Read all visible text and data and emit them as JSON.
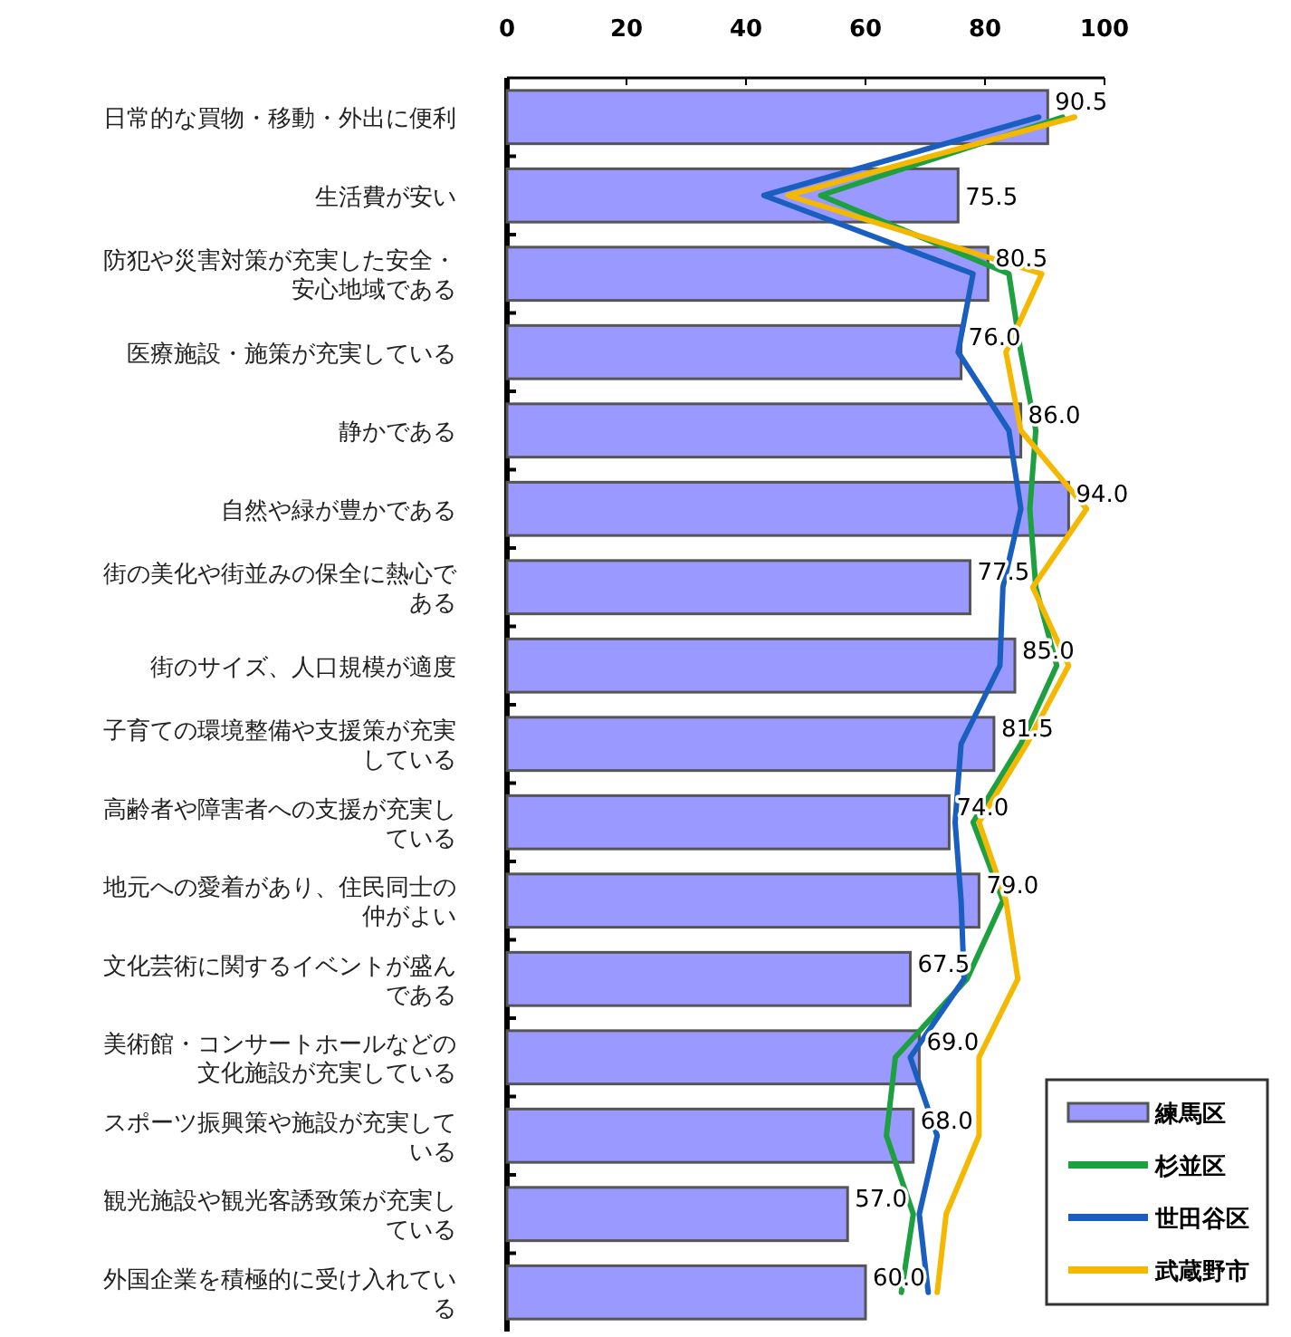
{
  "chart_data": {
    "type": "bar",
    "orientation": "horizontal",
    "categories": [
      "日常的な買物・移動・外出に便利",
      "生活費が安い",
      "防犯や災害対策が充実した安全・安心地域である",
      "医療施設・施策が充実している",
      "静かである",
      "自然や緑が豊かである",
      "街の美化や街並みの保全に熱心である",
      "街のサイズ、人口規模が適度",
      "子育ての環境整備や支援策が充実している",
      "高齢者や障害者への支援が充実している",
      "地元への愛着があり、住民同士の仲がよい",
      "文化芸術に関するイベントが盛んである",
      "美術館・コンサートホールなどの文化施設が充実している",
      "スポーツ振興策や施設が充実している",
      "観光施設や観光客誘致策が充実している",
      "外国企業を積極的に受け入れている"
    ],
    "xlim": [
      0,
      100
    ],
    "xticks": [
      0,
      20,
      40,
      60,
      80,
      100
    ],
    "legend": "bottom right",
    "series": [
      {
        "name": "練馬区",
        "color": "#9999ff",
        "values": [
          90.5,
          75.5,
          80.5,
          76.0,
          86.0,
          94.0,
          77.5,
          85.0,
          81.5,
          74.0,
          79.0,
          67.5,
          69.0,
          68.0,
          57.0,
          60.0
        ],
        "value_labels": [
          "90.5",
          "75.5",
          "80.5",
          "76.0",
          "86.0",
          "94.0",
          "77.5",
          "85.0",
          "81.5",
          "74.0",
          "79.0",
          "67.5",
          "69.0",
          "68.0",
          "57.0",
          "60.0"
        ]
      },
      {
        "name": "杉並区",
        "type": "line",
        "color": "#1fa040",
        "values": [
          93,
          52.5,
          84,
          86,
          88.5,
          87.5,
          88.5,
          92,
          86,
          78,
          83,
          77,
          65,
          63.5,
          68,
          66
        ]
      },
      {
        "name": "世田谷区",
        "type": "line",
        "color": "#1a5fbf",
        "values": [
          89,
          43,
          78,
          75.5,
          84,
          86,
          83,
          82.5,
          76,
          75,
          76,
          76.5,
          67.5,
          72,
          69,
          70.5
        ]
      },
      {
        "name": "武蔵野市",
        "type": "line",
        "color": "#f5b800",
        "values": [
          95,
          47,
          89.5,
          83.5,
          86,
          97,
          88,
          94,
          87,
          79,
          83.5,
          85.5,
          79,
          79,
          73.5,
          72
        ]
      }
    ]
  }
}
